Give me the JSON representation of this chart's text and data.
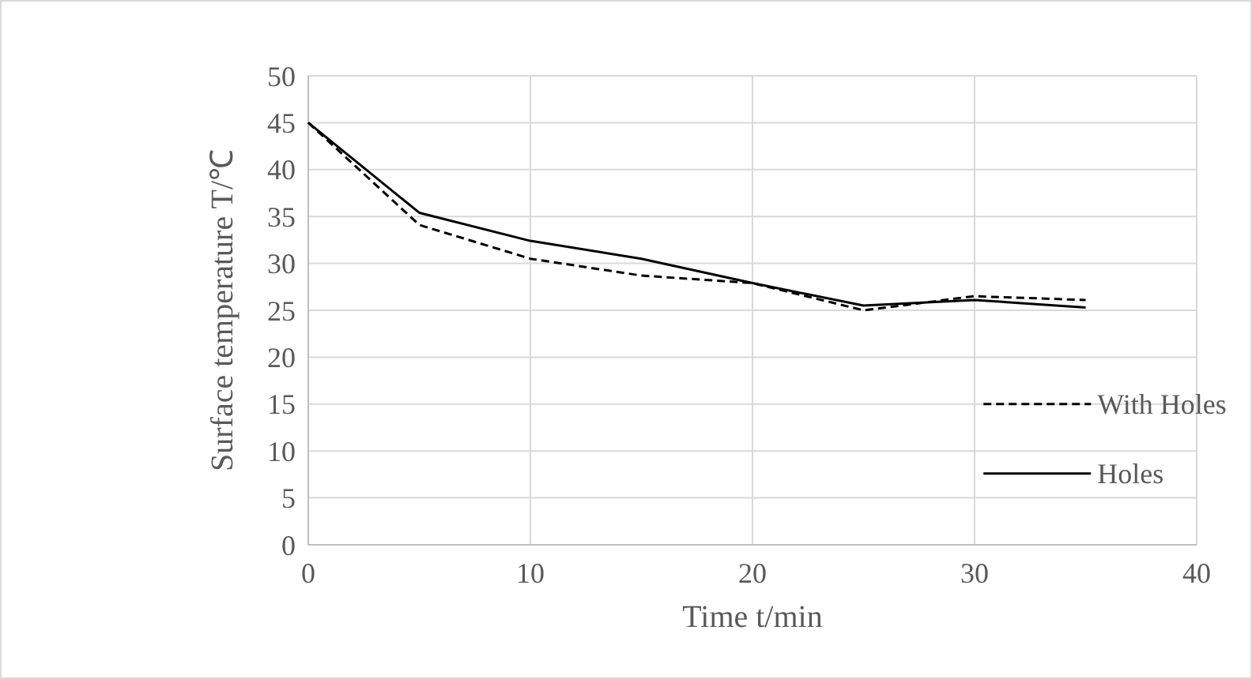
{
  "chart_data": {
    "type": "line",
    "xlabel": "Time t/min",
    "ylabel": "Surface temperature T/℃",
    "x": [
      0,
      5,
      10,
      15,
      20,
      25,
      30,
      35
    ],
    "xlim": [
      0,
      40
    ],
    "xticks": [
      0,
      10,
      20,
      30,
      40
    ],
    "ylim": [
      0,
      50
    ],
    "yticks": [
      0,
      5,
      10,
      15,
      20,
      25,
      30,
      35,
      40,
      45,
      50
    ],
    "grid": true,
    "legend": "right",
    "marker": "none",
    "series": [
      {
        "name": "With Holes",
        "color": "#000000",
        "line_style": "dashed",
        "values": [
          45,
          34.1,
          30.5,
          28.7,
          27.9,
          25.0,
          26.5,
          26.1
        ]
      },
      {
        "name": "Holes",
        "color": "#000000",
        "line_style": "solid",
        "values": [
          45,
          35.4,
          32.4,
          30.5,
          27.9,
          25.5,
          26.1,
          25.3
        ]
      }
    ]
  }
}
